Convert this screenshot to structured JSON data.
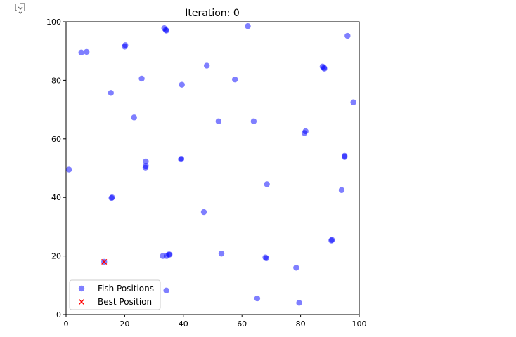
{
  "cell": {
    "output_icon": "expand-output-icon"
  },
  "chart_data": {
    "type": "scatter",
    "title": "Iteration: 0",
    "xlabel": "",
    "ylabel": "",
    "xlim": [
      0,
      100
    ],
    "ylim": [
      0,
      100
    ],
    "xticks": [
      "0",
      "20",
      "40",
      "60",
      "80",
      "100"
    ],
    "yticks": [
      "0",
      "20",
      "40",
      "60",
      "80",
      "100"
    ],
    "grid": false,
    "legend_position": "lower-left",
    "series": [
      {
        "name": "Fish Positions",
        "marker": "circle",
        "color": "#0000ff",
        "alpha": 0.5,
        "points": [
          [
            33.5,
            97.8
          ],
          [
            34,
            97.2
          ],
          [
            34.2,
            97
          ],
          [
            62,
            98.5
          ],
          [
            96,
            95.2
          ],
          [
            5.2,
            89.5
          ],
          [
            7,
            89.7
          ],
          [
            20,
            91.5
          ],
          [
            20.2,
            92
          ],
          [
            48,
            85
          ],
          [
            87.5,
            84.7
          ],
          [
            88,
            84.3
          ],
          [
            88.1,
            84
          ],
          [
            25.8,
            80.6
          ],
          [
            39.5,
            78.5
          ],
          [
            57.6,
            80.3
          ],
          [
            15.3,
            75.7
          ],
          [
            98,
            72.5
          ],
          [
            23.2,
            67.3
          ],
          [
            52,
            66
          ],
          [
            64,
            66
          ],
          [
            81.3,
            62
          ],
          [
            81.7,
            62.6
          ],
          [
            95,
            54.2
          ],
          [
            95,
            53.8
          ],
          [
            27.2,
            52.3
          ],
          [
            27.2,
            50.8
          ],
          [
            27.1,
            50.2
          ],
          [
            39.2,
            53
          ],
          [
            39.3,
            53.2
          ],
          [
            1,
            49.5
          ],
          [
            68.5,
            44.5
          ],
          [
            94,
            42.5
          ],
          [
            15.5,
            39.8
          ],
          [
            15.7,
            40
          ],
          [
            47,
            35
          ],
          [
            90.5,
            25.3
          ],
          [
            90.7,
            25.5
          ],
          [
            53,
            20.8
          ],
          [
            33,
            20
          ],
          [
            34.3,
            20
          ],
          [
            35,
            20.5
          ],
          [
            35.3,
            20.5
          ],
          [
            68,
            19.5
          ],
          [
            68.3,
            19.2
          ],
          [
            13,
            18
          ],
          [
            78.5,
            16
          ],
          [
            34.2,
            8.2
          ],
          [
            65.2,
            5.5
          ],
          [
            79.5,
            4
          ]
        ]
      },
      {
        "name": "Best Position",
        "marker": "x",
        "color": "#ff0000",
        "points": [
          [
            13,
            18
          ]
        ]
      }
    ]
  }
}
